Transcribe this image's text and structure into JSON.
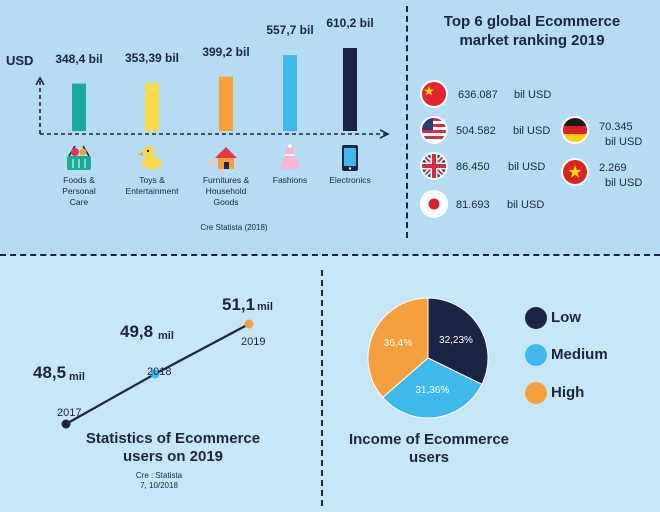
{
  "colors": {
    "dark": "#1b2445",
    "low": "#1b2445",
    "medium": "#3fb8ea",
    "high": "#f5a03e"
  },
  "bar_chart": {
    "type": "bar",
    "ylabel": "USD",
    "categories": [
      {
        "lines": [
          "Foods &",
          "Personal",
          "Care"
        ],
        "icon": "basket-icon"
      },
      {
        "lines": [
          "Toys &",
          "Entertainment"
        ],
        "icon": "duck-toy-icon"
      },
      {
        "lines": [
          "Furnitures &",
          "Household",
          "Goods"
        ],
        "icon": "house-icon"
      },
      {
        "lines": [
          "Fashions"
        ],
        "icon": "dress-icon"
      },
      {
        "lines": [
          "Electronics"
        ],
        "icon": "phone-icon"
      }
    ],
    "values": [
      348.4,
      353.39,
      399.2,
      557.7,
      610.2
    ],
    "value_labels": [
      "348,4 bil",
      "353,39 bil",
      "399,2 bil",
      "557,7 bil",
      "610,2 bil"
    ],
    "colors": [
      "#1aaa98",
      "#f7d94a",
      "#f6a13c",
      "#40b8ea",
      "#1b2445"
    ],
    "source": "Cre Statista (2018)"
  },
  "ranking": {
    "title_lines": [
      "Top 6 global Ecommerce",
      "market ranking 2019"
    ],
    "items": [
      {
        "value": "636.087",
        "unit": "bil USD",
        "flag": "china-flag-icon"
      },
      {
        "value": "504.582",
        "unit": "bil USD",
        "flag": "usa-flag-icon"
      },
      {
        "value": "86.450",
        "unit": "bil USD",
        "flag": "uk-flag-icon"
      },
      {
        "value": "81.693",
        "unit": "bil USD",
        "flag": "japan-flag-icon"
      },
      {
        "value": "70.345",
        "unit": "bil USD",
        "flag": "germany-flag-icon"
      },
      {
        "value": "2.269",
        "unit": "bil USD",
        "flag": "vietnam-flag-icon"
      }
    ]
  },
  "users_chart": {
    "type": "line",
    "x": [
      "2017",
      "2018",
      "2019"
    ],
    "y": [
      48.5,
      49.8,
      51.1
    ],
    "value_labels": [
      "48,5",
      "49,8",
      "51,1"
    ],
    "unit": "mil",
    "title_lines": [
      "Statistics of Ecommerce",
      "users on 2019"
    ],
    "source_lines": [
      "Cre : Statista",
      "7, 10/2018"
    ]
  },
  "chart_data": {
    "type": "pie",
    "title": "Income of Ecommerce users",
    "categories": [
      "Low",
      "Medium",
      "High"
    ],
    "values": [
      32.23,
      31.36,
      36.4
    ],
    "value_labels": [
      "32,23%",
      "31,36%",
      "36,4%"
    ],
    "legend": [
      "Low",
      "Medium",
      "High"
    ]
  }
}
